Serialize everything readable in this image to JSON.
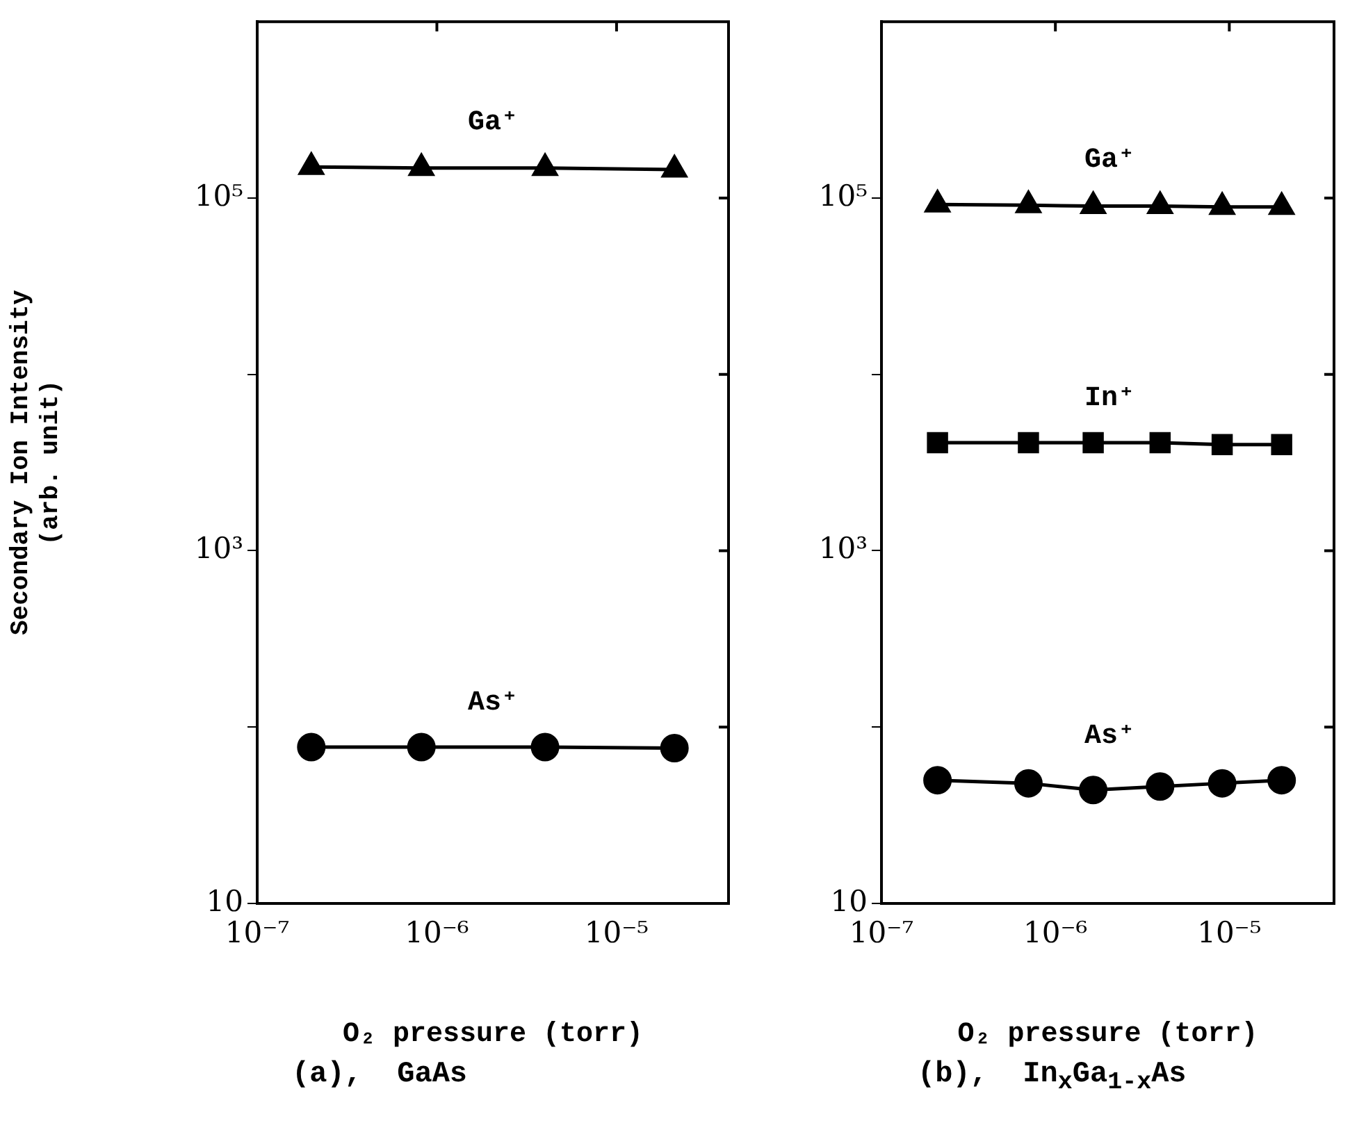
{
  "chart_data": [
    {
      "type": "line",
      "ylabel": "Secondary Ion Intensity (arb. unit)",
      "xlabel": "O₂ pressure (torr)",
      "annotations": [
        "(a),  GaAs"
      ],
      "log": "xy",
      "grid": false,
      "legend": false,
      "line_style": "solid",
      "x": [
        2e-07,
        8.2e-07,
        4e-06,
        2.1e-05
      ],
      "xlim": [
        1e-07,
        4.2e-05
      ],
      "xticks": [
        {
          "value": 1e-07,
          "label": "10⁻⁷"
        },
        {
          "value": 1e-06,
          "label": "10⁻⁶"
        },
        {
          "value": 1e-05,
          "label": "10⁻⁵"
        }
      ],
      "ylim": [
        10,
        1000000
      ],
      "yticks": [
        {
          "value": 10,
          "label": "10"
        },
        {
          "value": 100,
          "label": null
        },
        {
          "value": 1000,
          "label": "10³"
        },
        {
          "value": 10000,
          "label": null
        },
        {
          "value": 100000,
          "label": "10⁵"
        }
      ],
      "series": [
        {
          "name": "Ga⁺",
          "color": "#000000",
          "marker": "triangle",
          "values": [
            150000,
            148000,
            148000,
            145000
          ]
        },
        {
          "name": "As⁺",
          "color": "#000000",
          "marker": "circle",
          "values": [
            77,
            77,
            77,
            76
          ]
        }
      ]
    },
    {
      "type": "line",
      "xlabel": "O₂ pressure (torr)",
      "annotations": [
        "(b),  In$_{x}$Ga$_{1-x}$As"
      ],
      "log": "xy",
      "grid": false,
      "legend": false,
      "line_style": "solid",
      "x": [
        2.1e-07,
        7e-07,
        1.65e-06,
        4e-06,
        9.1e-06,
        2e-05
      ],
      "xlim": [
        1e-07,
        4e-05
      ],
      "xticks": [
        {
          "value": 1e-07,
          "label": "10⁻⁷"
        },
        {
          "value": 1e-06,
          "label": "10⁻⁶"
        },
        {
          "value": 1e-05,
          "label": "10⁻⁵"
        }
      ],
      "ylim": [
        10,
        1000000
      ],
      "yticks": [
        {
          "value": 10,
          "label": "10"
        },
        {
          "value": 100,
          "label": null
        },
        {
          "value": 1000,
          "label": "10³"
        },
        {
          "value": 10000,
          "label": null
        },
        {
          "value": 100000,
          "label": "10⁵"
        }
      ],
      "series": [
        {
          "name": "Ga⁺",
          "color": "#000000",
          "marker": "triangle",
          "values": [
            92000,
            91000,
            90000,
            90000,
            89000,
            89000
          ]
        },
        {
          "name": "In⁺",
          "color": "#000000",
          "marker": "square",
          "values": [
            4100,
            4100,
            4100,
            4100,
            4000,
            4000
          ]
        },
        {
          "name": "As⁺",
          "color": "#000000",
          "marker": "circle",
          "values": [
            50,
            48,
            44,
            46,
            48,
            50
          ]
        }
      ]
    }
  ]
}
